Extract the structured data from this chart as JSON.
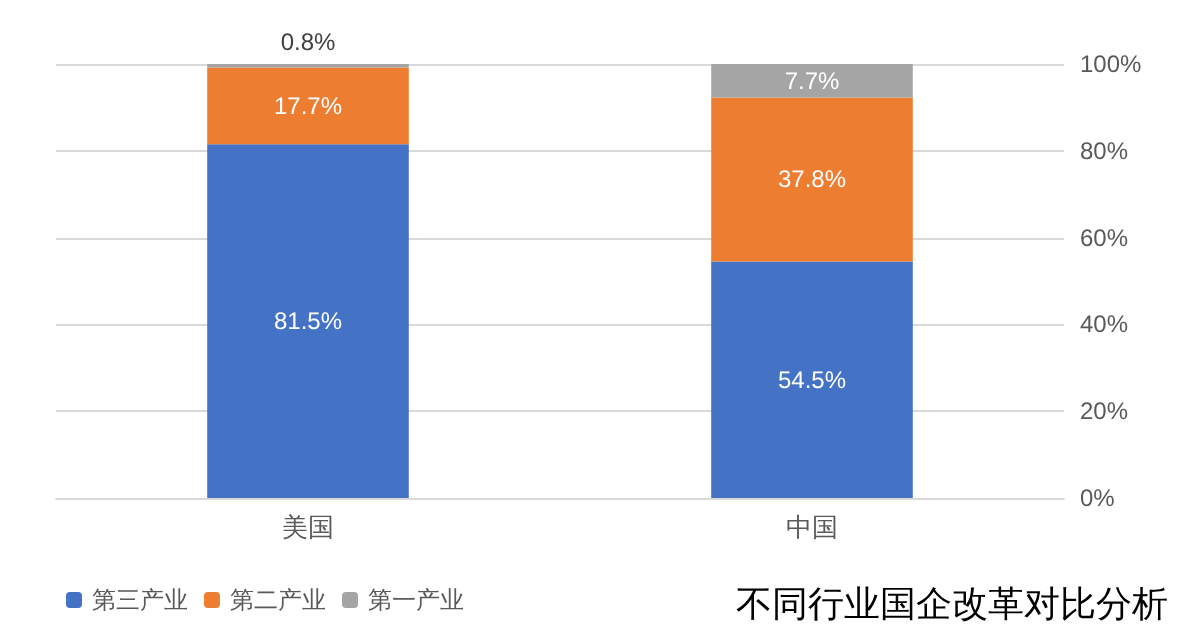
{
  "chart_data": {
    "type": "bar",
    "stacked": true,
    "annotations": [
      "不同行业国企改革对比分析"
    ],
    "categories": [
      "美国",
      "中国"
    ],
    "series": [
      {
        "name": "第三产业",
        "color": "#4472c4",
        "values": [
          81.5,
          54.5
        ],
        "value_labels": [
          "81.5%",
          "54.5%"
        ]
      },
      {
        "name": "第二产业",
        "color": "#ed7d31",
        "values": [
          17.7,
          37.8
        ],
        "value_labels": [
          "17.7%",
          "37.8%"
        ]
      },
      {
        "name": "第一产业",
        "color": "#a5a5a5",
        "values": [
          0.8,
          7.7
        ],
        "value_labels": [
          "0.8%",
          "7.7%"
        ]
      }
    ],
    "ylim": [
      0,
      100
    ],
    "yticks": [
      {
        "value": 0,
        "label": "0%"
      },
      {
        "value": 20,
        "label": "20%"
      },
      {
        "value": 40,
        "label": "40%"
      },
      {
        "value": 60,
        "label": "60%"
      },
      {
        "value": 80,
        "label": "80%"
      },
      {
        "value": 100,
        "label": "100%"
      }
    ],
    "grid": "y",
    "legend": "bottom left"
  }
}
